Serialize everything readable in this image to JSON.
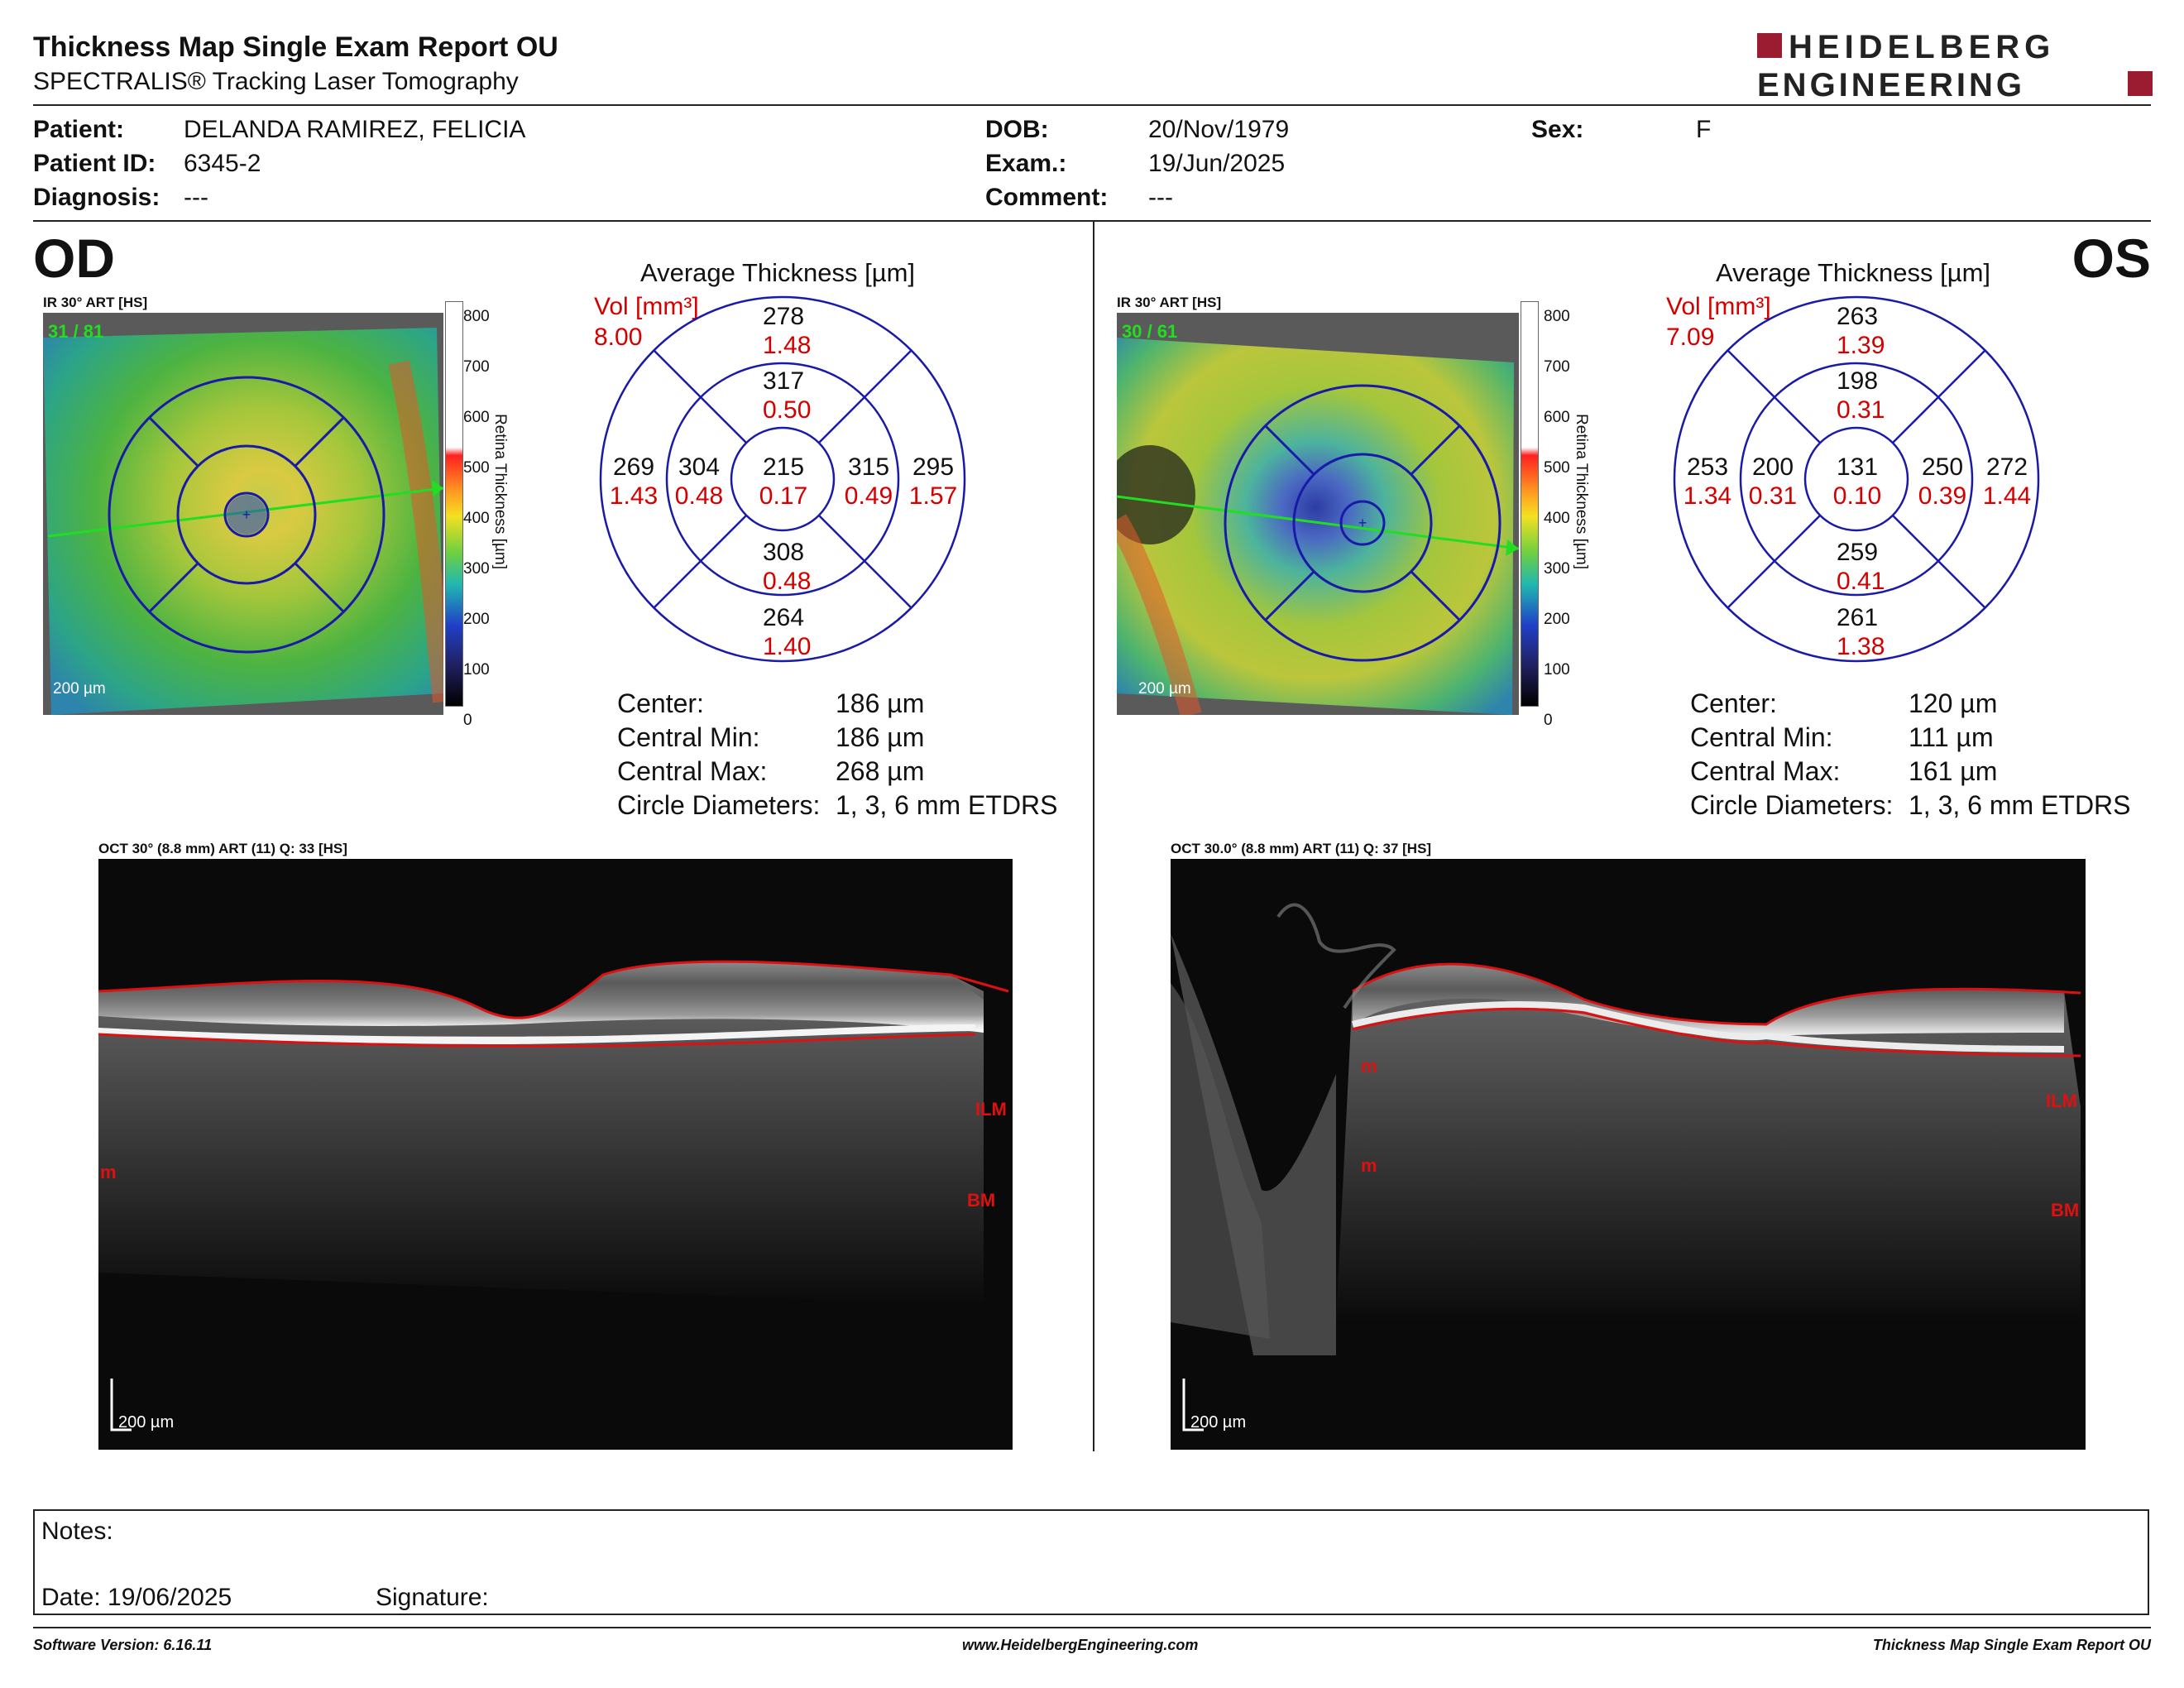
{
  "header": {
    "title": "Thickness Map Single Exam Report OU",
    "subtitle": "SPECTRALIS® Tracking Laser Tomography",
    "logo_line1": "HEIDELBERG",
    "logo_line2": "ENGINEERING"
  },
  "patient": {
    "patient_label": "Patient:",
    "patient_value": "DELANDA RAMIREZ, FELICIA",
    "id_label": "Patient ID:",
    "id_value": "6345-2",
    "diagnosis_label": "Diagnosis:",
    "diagnosis_value": "---",
    "dob_label": "DOB:",
    "dob_value": "20/Nov/1979",
    "exam_label": "Exam.:",
    "exam_value": "19/Jun/2025",
    "comment_label": "Comment:",
    "comment_value": "---",
    "sex_label": "Sex:",
    "sex_value": "F"
  },
  "colors": {
    "grid_blue": "#1a1aa8",
    "vol_red": "#d40000",
    "scan_line_green": "#22dd22",
    "brand_red": "#9b1b30"
  },
  "od": {
    "eye_label": "OD",
    "ir_label": "IR 30° ART [HS]",
    "frame_count": "31 / 81",
    "scale_label": "200 µm",
    "colorbar_ticks": [
      "800",
      "700",
      "600",
      "500",
      "400",
      "300",
      "200",
      "100",
      "0"
    ],
    "colorbar_title": "Retina  Thickness [µm]",
    "avg_title": "Average Thickness [µm]",
    "vol_label": "Vol [mm³]",
    "vol_total": "8.00",
    "grid": {
      "outer_top": {
        "t": "278",
        "v": "1.48"
      },
      "inner_top": {
        "t": "317",
        "v": "0.50"
      },
      "outer_left": {
        "t": "269",
        "v": "1.43"
      },
      "inner_left": {
        "t": "304",
        "v": "0.48"
      },
      "center": {
        "t": "215",
        "v": "0.17"
      },
      "inner_right": {
        "t": "315",
        "v": "0.49"
      },
      "outer_right": {
        "t": "295",
        "v": "1.57"
      },
      "inner_bottom": {
        "t": "308",
        "v": "0.48"
      },
      "outer_bottom": {
        "t": "264",
        "v": "1.40"
      }
    },
    "stats": [
      {
        "label": "Center:",
        "value": "186 µm"
      },
      {
        "label": "Central Min:",
        "value": "186 µm"
      },
      {
        "label": "Central Max:",
        "value": "268 µm"
      },
      {
        "label": "Circle Diameters:",
        "value": "1, 3, 6 mm ETDRS"
      }
    ],
    "oct_label": "OCT 30° (8.8 mm) ART (11) Q: 33 [HS]",
    "oct_scale": "200 µm",
    "ilm": "ILM",
    "bm": "BM",
    "m": "m"
  },
  "os": {
    "eye_label": "OS",
    "ir_label": "IR 30° ART [HS]",
    "frame_count": "30 / 61",
    "scale_label": "200 µm",
    "colorbar_ticks": [
      "800",
      "700",
      "600",
      "500",
      "400",
      "300",
      "200",
      "100",
      "0"
    ],
    "colorbar_title": "Retina  Thickness [µm]",
    "avg_title": "Average Thickness [µm]",
    "vol_label": "Vol [mm³]",
    "vol_total": "7.09",
    "grid": {
      "outer_top": {
        "t": "263",
        "v": "1.39"
      },
      "inner_top": {
        "t": "198",
        "v": "0.31"
      },
      "outer_left": {
        "t": "253",
        "v": "1.34"
      },
      "inner_left": {
        "t": "200",
        "v": "0.31"
      },
      "center": {
        "t": "131",
        "v": "0.10"
      },
      "inner_right": {
        "t": "250",
        "v": "0.39"
      },
      "outer_right": {
        "t": "272",
        "v": "1.44"
      },
      "inner_bottom": {
        "t": "259",
        "v": "0.41"
      },
      "outer_bottom": {
        "t": "261",
        "v": "1.38"
      }
    },
    "stats": [
      {
        "label": "Center:",
        "value": "120 µm"
      },
      {
        "label": "Central Min:",
        "value": "111 µm"
      },
      {
        "label": "Central Max:",
        "value": "161 µm"
      },
      {
        "label": "Circle Diameters:",
        "value": "1, 3, 6 mm ETDRS"
      }
    ],
    "oct_label": "OCT 30.0° (8.8 mm) ART (11) Q: 37 [HS]",
    "oct_scale": "200 µm",
    "ilm": "ILM",
    "bm": "BM",
    "m": "m"
  },
  "notes": {
    "notes_label": "Notes:",
    "date_label": "Date: 19/06/2025",
    "signature_label": "Signature:"
  },
  "footer": {
    "software": "Software Version: 6.16.11",
    "website": "www.HeidelbergEngineering.com",
    "report_name": "Thickness Map Single Exam Report OU"
  }
}
